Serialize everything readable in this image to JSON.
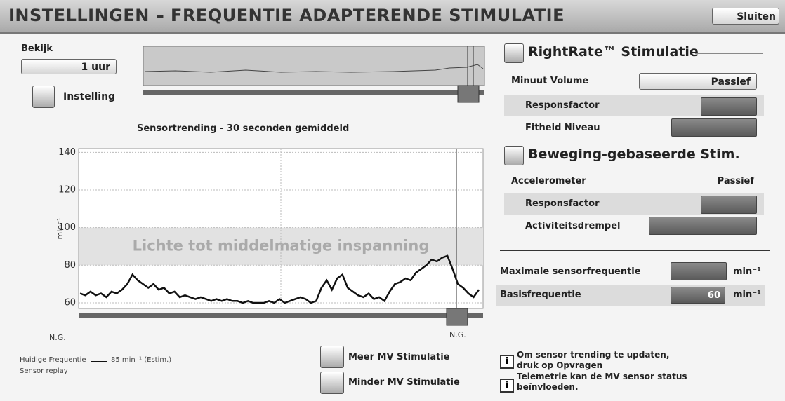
{
  "header": {
    "title": "INSTELLINGEN – FREQUENTIE ADAPTERENDE STIMULATIE",
    "close_button": "Sluiten"
  },
  "left": {
    "view_label": "Bekijk",
    "view_value": "1 uur",
    "settings_button": "Instelling",
    "chart_title": "Sensortrending - 30 seconden gemiddeld"
  },
  "chart_data": {
    "type": "line",
    "y_label": "min⁻¹",
    "x_labels": [
      "N.G.",
      "N.G."
    ],
    "ylim": [
      57,
      142
    ],
    "yticks": [
      60,
      80,
      100,
      120,
      140
    ],
    "grid": true,
    "color": "#111111",
    "band": {
      "from": 80,
      "to": 100,
      "label": "Lichte tot middelmatige inspanning"
    },
    "values": [
      65,
      64,
      66,
      64,
      65,
      63,
      66,
      65,
      67,
      70,
      75,
      72,
      70,
      68,
      70,
      67,
      68,
      65,
      66,
      63,
      64,
      63,
      62,
      63,
      62,
      61,
      62,
      61,
      62,
      61,
      61,
      60,
      61,
      60,
      60,
      60,
      61,
      60,
      62,
      60,
      61,
      62,
      63,
      62,
      60,
      61,
      68,
      72,
      67,
      73,
      75,
      68,
      66,
      64,
      63,
      65,
      62,
      63,
      61,
      66,
      70,
      71,
      73,
      72,
      76,
      78,
      80,
      83,
      82,
      84,
      85,
      78,
      70,
      68,
      65,
      63,
      67
    ]
  },
  "legend": {
    "current_label": "Huidige Frequentie",
    "current_value": "85 min⁻¹ (Estim.)",
    "replay": "Sensor replay"
  },
  "buttons": {
    "more": "Meer MV Stimulatie",
    "less": "Minder MV Stimulatie"
  },
  "info": [
    {
      "lines": [
        "Om sensor trending te updaten,",
        "druk op Opvragen"
      ]
    },
    {
      "lines": [
        "Telemetrie kan de MV sensor status",
        "beïnvloeden."
      ]
    }
  ],
  "right": {
    "rightrate_title": "RightRate™ Stimulatie",
    "minute_volume": "Minuut Volume",
    "minute_volume_value": "Passief",
    "response_factor_1": "Responsfactor",
    "fitness_level": "Fitheid Niveau",
    "motion_title": "Beweging-gebaseerde Stim.",
    "accelerometer": "Accelerometer",
    "accelerometer_value": "Passief",
    "response_factor_2": "Responsfactor",
    "activity_threshold": "Activiteitsdrempel",
    "max_sensor_rate": "Maximale sensorfrequentie",
    "max_sensor_unit": "min⁻¹",
    "base_rate": "Basisfrequentie",
    "base_rate_value": "60",
    "base_rate_unit": "min⁻¹"
  }
}
